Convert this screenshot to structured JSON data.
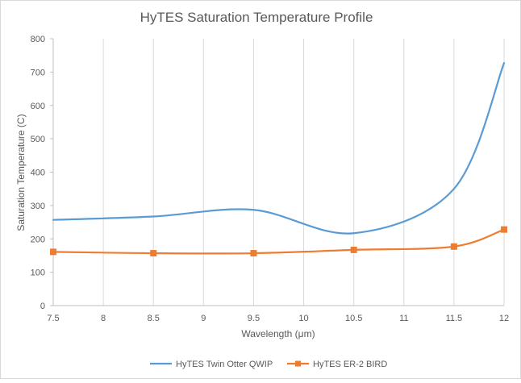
{
  "chart_data": {
    "type": "line",
    "title": "HyTES Saturation Temperature  Profile",
    "xlabel": "Wavelength  (μm)",
    "ylabel": "Saturation Temperature  (C)",
    "xlim": [
      7.5,
      12
    ],
    "ylim": [
      0,
      800
    ],
    "x_ticks": [
      "7.5",
      "8",
      "8.5",
      "9",
      "9.5",
      "10",
      "10.5",
      "11",
      "11.5",
      "12"
    ],
    "y_ticks": [
      "0",
      "100",
      "200",
      "300",
      "400",
      "500",
      "600",
      "700",
      "800"
    ],
    "x_tick_values": [
      7.5,
      8,
      8.5,
      9,
      9.5,
      10,
      10.5,
      11,
      11.5,
      12
    ],
    "y_tick_values": [
      0,
      100,
      200,
      300,
      400,
      500,
      600,
      700,
      800
    ],
    "grid": "vertical",
    "legend_position": "bottom",
    "series": [
      {
        "name": "HyTES Twin Otter QWIP",
        "color": "#5B9BD5",
        "marker": "none",
        "x": [
          7.5,
          8.5,
          9.5,
          10.5,
          11.5,
          12
        ],
        "y": [
          257,
          267,
          287,
          217,
          350,
          727
        ]
      },
      {
        "name": "HyTES ER-2 BIRD",
        "color": "#ED7D31",
        "marker": "square",
        "x": [
          7.5,
          8.5,
          9.5,
          10.5,
          11.5,
          12
        ],
        "y": [
          161,
          157,
          157,
          167,
          177,
          228
        ]
      }
    ]
  }
}
